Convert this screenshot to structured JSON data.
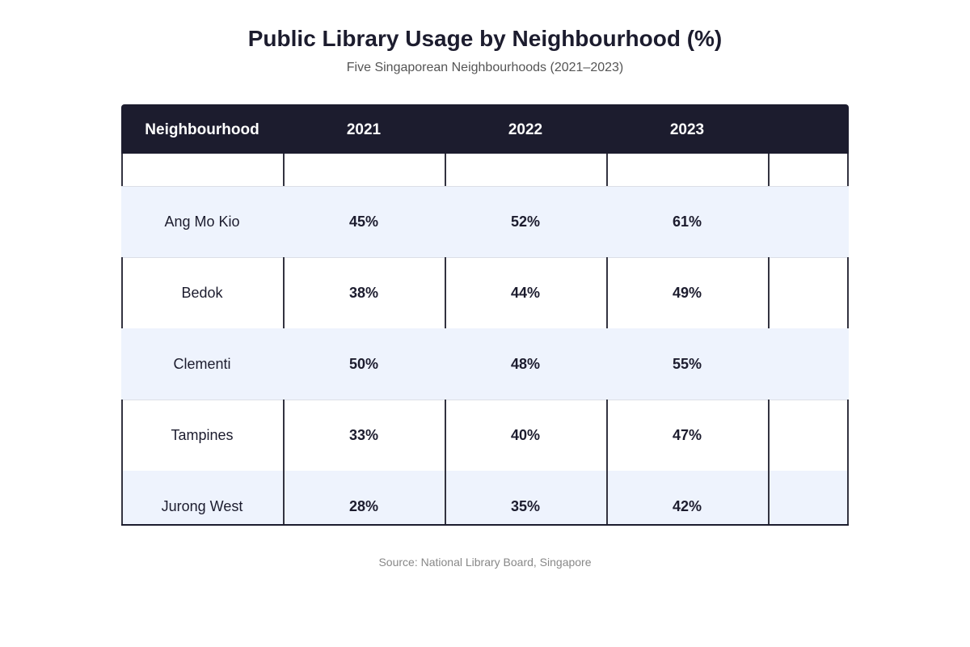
{
  "title": "Public Library Usage by Neighbourhood (%)",
  "subtitle": "Five Singaporean Neighbourhoods (2021–2023)",
  "source": "Source: National Library Board, Singapore",
  "colors": {
    "header_bg": "#1c1c2e",
    "alt_row_bg": "#eef3fd",
    "text": "#1c1c2e"
  },
  "chart_data": {
    "type": "table",
    "title": "Public Library Usage by Neighbourhood (%)",
    "subtitle": "Five Singaporean Neighbourhoods (2021–2023)",
    "columns": [
      "Neighbourhood",
      "2021",
      "2022",
      "2023"
    ],
    "categories": [
      "Ang Mo Kio",
      "Bedok",
      "Clementi",
      "Tampines",
      "Jurong West"
    ],
    "series": [
      {
        "name": "2021",
        "values": [
          45,
          38,
          50,
          33,
          28
        ]
      },
      {
        "name": "2022",
        "values": [
          52,
          44,
          48,
          40,
          35
        ]
      },
      {
        "name": "2023",
        "values": [
          61,
          49,
          55,
          47,
          42
        ]
      }
    ],
    "rows": [
      {
        "neighbourhood": "Ang Mo Kio",
        "cells": [
          "45%",
          "52%",
          "61%"
        ]
      },
      {
        "neighbourhood": "Bedok",
        "cells": [
          "38%",
          "44%",
          "49%"
        ]
      },
      {
        "neighbourhood": "Clementi",
        "cells": [
          "50%",
          "48%",
          "55%"
        ]
      },
      {
        "neighbourhood": "Tampines",
        "cells": [
          "33%",
          "40%",
          "47%"
        ]
      },
      {
        "neighbourhood": "Jurong West",
        "cells": [
          "28%",
          "35%",
          "42%"
        ]
      }
    ]
  }
}
